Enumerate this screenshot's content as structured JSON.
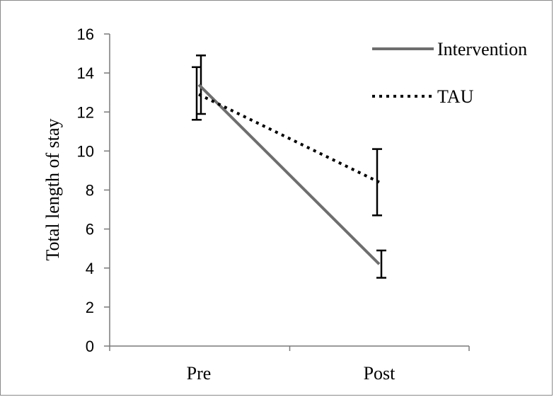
{
  "chart_data": {
    "type": "line",
    "title": "",
    "xlabel": "",
    "ylabel": "Total length of stay",
    "categories": [
      "Pre",
      "Post"
    ],
    "ylim": [
      0,
      16
    ],
    "yticks": [
      0,
      2,
      4,
      6,
      8,
      10,
      12,
      14,
      16
    ],
    "grid": false,
    "legend_position": "top-right",
    "series": [
      {
        "name": "Intervention",
        "values": [
          13.4,
          4.2
        ],
        "error_low": [
          11.9,
          3.5
        ],
        "error_high": [
          14.9,
          4.9
        ],
        "line_style": "solid",
        "color": "#6e6e6e"
      },
      {
        "name": "TAU",
        "values": [
          12.9,
          8.4
        ],
        "error_low": [
          11.6,
          6.7
        ],
        "error_high": [
          14.3,
          10.1
        ],
        "line_style": "dotted",
        "color": "#000000"
      }
    ]
  }
}
